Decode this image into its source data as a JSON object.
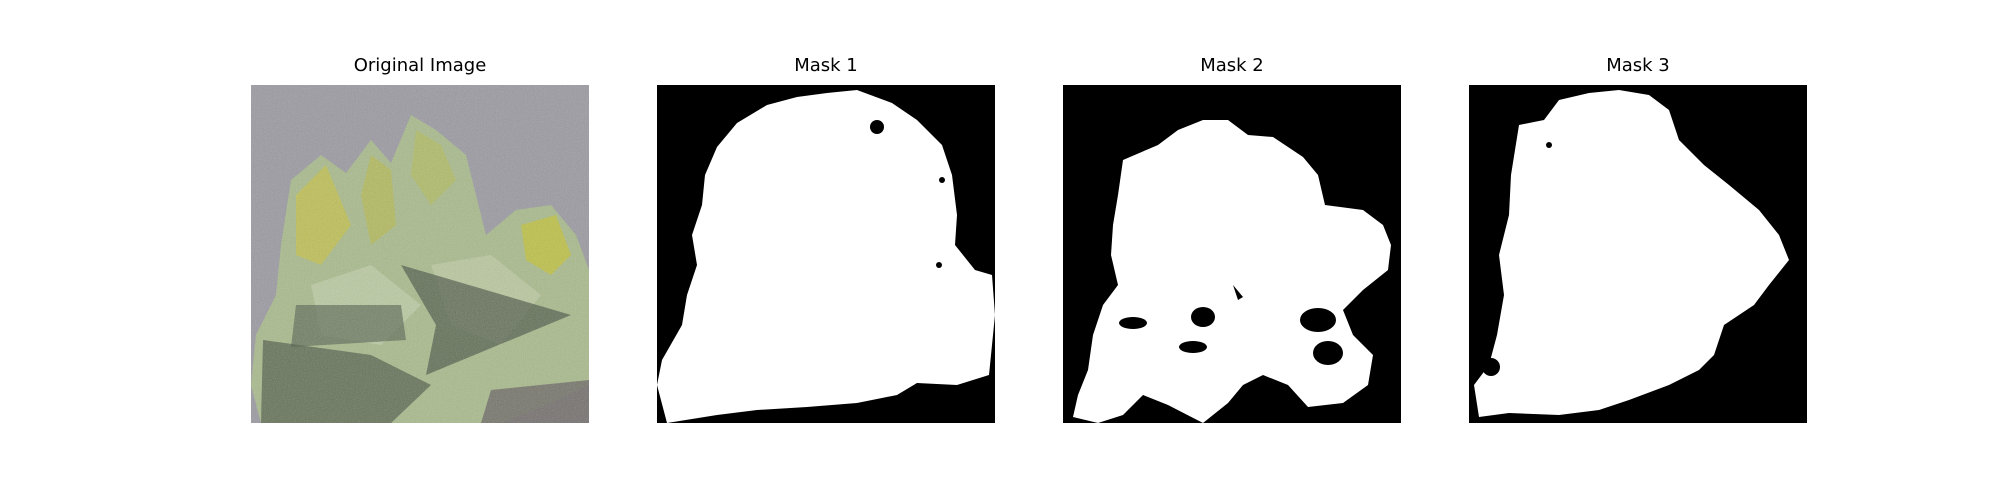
{
  "panels": [
    {
      "title": "Original Image"
    },
    {
      "title": "Mask 1"
    },
    {
      "title": "Mask 2"
    },
    {
      "title": "Mask 3"
    }
  ],
  "colors": {
    "mask_background": "#000000",
    "mask_foreground": "#ffffff",
    "ground": "#9b9aa2",
    "leaf_light": "#b6c79a",
    "leaf_mid": "#8fa86a",
    "leaf_yellow": "#c9c43a",
    "shadow": "#4e5a48"
  }
}
